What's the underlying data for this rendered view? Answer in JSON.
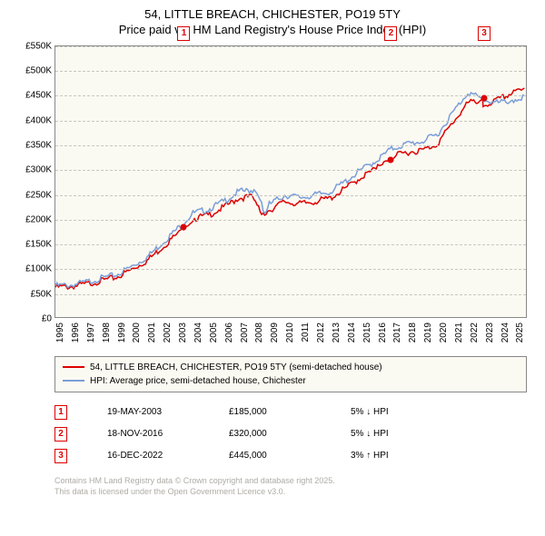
{
  "title": "54, LITTLE BREACH, CHICHESTER, PO19 5TY",
  "subtitle": "Price paid vs. HM Land Registry's House Price Index (HPI)",
  "chart": {
    "type": "line",
    "background_color": "#fbfaf2",
    "grid_color": "#c7c7c0",
    "border_color": "#888888",
    "xlim": [
      1995,
      2025.8
    ],
    "ylim": [
      0,
      550000
    ],
    "ytick_step": 50000,
    "ytick_labels": [
      "£0",
      "£50K",
      "£100K",
      "£150K",
      "£200K",
      "£250K",
      "£300K",
      "£350K",
      "£400K",
      "£450K",
      "£500K",
      "£550K"
    ],
    "xticks": [
      1995,
      1996,
      1997,
      1998,
      1999,
      2000,
      2001,
      2002,
      2003,
      2004,
      2005,
      2006,
      2007,
      2008,
      2009,
      2010,
      2011,
      2012,
      2013,
      2014,
      2015,
      2016,
      2017,
      2018,
      2019,
      2020,
      2021,
      2022,
      2023,
      2024,
      2025
    ],
    "line_width": 1.5,
    "series": [
      {
        "name": "54, LITTLE BREACH, CHICHESTER, PO19 5TY (semi-detached house)",
        "color": "#dc0000",
        "x": [
          1995,
          1996,
          1997,
          1998,
          1999,
          2000,
          2001,
          2002,
          2003,
          2003.4,
          2004,
          2005,
          2006,
          2007,
          2008,
          2008.7,
          2009,
          2010,
          2011,
          2012,
          2013,
          2014,
          2015,
          2016,
          2016.9,
          2017,
          2018,
          2019,
          2020,
          2021,
          2022,
          2022.96,
          2023,
          2024,
          2025,
          2025.7
        ],
        "y": [
          64000,
          65000,
          70000,
          77000,
          84000,
          100000,
          118000,
          145000,
          173000,
          185000,
          203000,
          210000,
          226000,
          245000,
          248000,
          205000,
          220000,
          238000,
          233000,
          238000,
          245000,
          265000,
          287000,
          305000,
          320000,
          328000,
          338000,
          342000,
          355000,
          398000,
          438000,
          445000,
          432000,
          445000,
          460000,
          465000
        ]
      },
      {
        "name": "HPI: Average price, semi-detached house, Chichester",
        "color": "#7a9ed9",
        "x": [
          1995,
          1996,
          1997,
          1998,
          1999,
          2000,
          2001,
          2002,
          2003,
          2004,
          2005,
          2006,
          2007,
          2008,
          2008.7,
          2009,
          2010,
          2011,
          2012,
          2013,
          2014,
          2015,
          2016,
          2017,
          2018,
          2019,
          2020,
          2021,
          2022,
          2023,
          2024,
          2025,
          2025.7
        ],
        "y": [
          67000,
          68000,
          74000,
          82000,
          89000,
          106000,
          125000,
          154000,
          183000,
          214000,
          222000,
          238000,
          258000,
          261000,
          218000,
          232000,
          251000,
          246000,
          251000,
          258000,
          279000,
          302000,
          321000,
          345000,
          355000,
          360000,
          374000,
          418000,
          460000,
          445000,
          438000,
          445000,
          450000
        ]
      }
    ],
    "sale_points": [
      {
        "index": 1,
        "x": 2003.38,
        "y": 185000
      },
      {
        "index": 2,
        "x": 2016.88,
        "y": 320000
      },
      {
        "index": 3,
        "x": 2022.96,
        "y": 445000
      }
    ],
    "marker_box": {
      "border_color": "#dc0000",
      "text_color": "#dc0000",
      "bg": "#ffffff"
    }
  },
  "legend": {
    "items": [
      {
        "label": "54, LITTLE BREACH, CHICHESTER, PO19 5TY (semi-detached house)",
        "color": "#dc0000"
      },
      {
        "label": "HPI: Average price, semi-detached house, Chichester",
        "color": "#7a9ed9"
      }
    ]
  },
  "sales": [
    {
      "n": "1",
      "date": "19-MAY-2003",
      "price": "£185,000",
      "delta": "5% ↓ HPI"
    },
    {
      "n": "2",
      "date": "18-NOV-2016",
      "price": "£320,000",
      "delta": "5% ↓ HPI"
    },
    {
      "n": "3",
      "date": "16-DEC-2022",
      "price": "£445,000",
      "delta": "3% ↑ HPI"
    }
  ],
  "footer": {
    "line1": "Contains HM Land Registry data © Crown copyright and database right 2025.",
    "line2": "This data is licensed under the Open Government Licence v3.0."
  }
}
